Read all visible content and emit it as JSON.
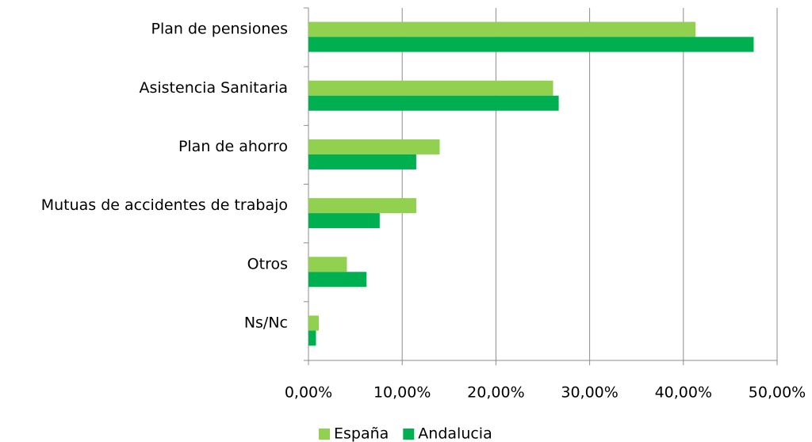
{
  "chart_data": {
    "type": "hbar",
    "categories": [
      "Plan de pensiones",
      "Asistencia Sanitaria",
      "Plan de ahorro",
      "Mutuas de accidentes de trabajo",
      "Otros",
      "Ns/Nc"
    ],
    "series": [
      {
        "name": "España",
        "color": "#92d050",
        "values": [
          41.3,
          26.1,
          14.0,
          11.5,
          4.1,
          1.1
        ]
      },
      {
        "name": "Andalucia",
        "color": "#00b050",
        "values": [
          47.5,
          26.7,
          11.5,
          7.6,
          6.2,
          0.8
        ]
      }
    ],
    "xlim": [
      0,
      50
    ],
    "xticks": [
      {
        "value": 0,
        "label": "0,00%"
      },
      {
        "value": 10,
        "label": "10,00%"
      },
      {
        "value": 20,
        "label": "20,00%"
      },
      {
        "value": 30,
        "label": "30,00%"
      },
      {
        "value": 40,
        "label": "40,00%"
      },
      {
        "value": 50,
        "label": "50,00%"
      }
    ],
    "grid": true,
    "legend": "bottom"
  }
}
